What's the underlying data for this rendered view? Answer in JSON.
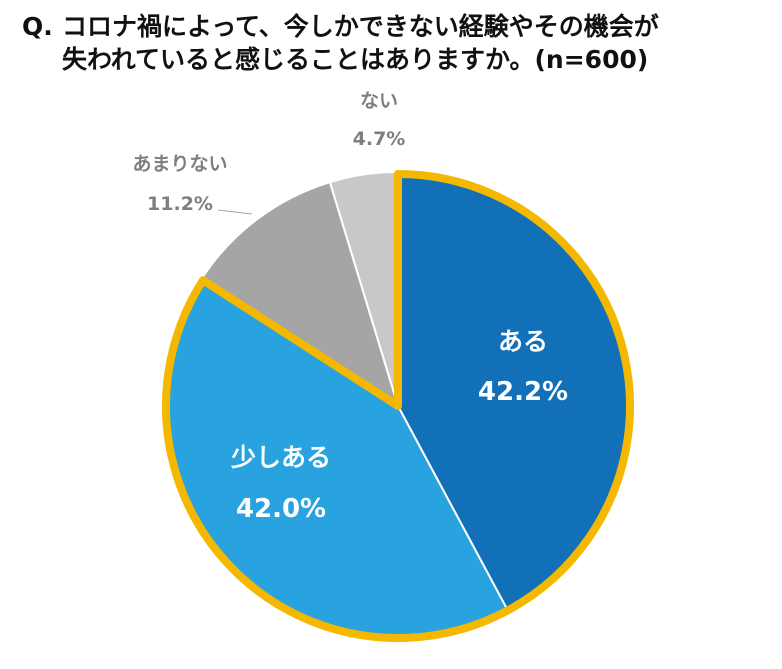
{
  "question": {
    "prefix": "Q.",
    "line1": "コロナ禍によって、今しかできない経験やその機会が",
    "line2": "失われていると感じることはありますか。(n=600)"
  },
  "chart_data": {
    "type": "pie",
    "title": "コロナ禍によって、今しかできない経験やその機会が失われていると感じることはありますか。(n=600)",
    "unit": "%",
    "slices": [
      {
        "label": "ある",
        "value": 42.2,
        "display": "42.2%",
        "color": "#1170b8",
        "highlight": true
      },
      {
        "label": "少しある",
        "value": 42.0,
        "display": "42.0%",
        "color": "#29a3df",
        "highlight": true
      },
      {
        "label": "あまりない",
        "value": 11.2,
        "display": "11.2%",
        "color": "#a5a5a5",
        "highlight": false
      },
      {
        "label": "ない",
        "value": 4.7,
        "display": "4.7%",
        "color": "#c8c8c8",
        "highlight": false
      }
    ],
    "highlight_color": "#f5b800",
    "inside_label_color": "#ffffff",
    "outside_label_color": "#7f7f7f"
  }
}
